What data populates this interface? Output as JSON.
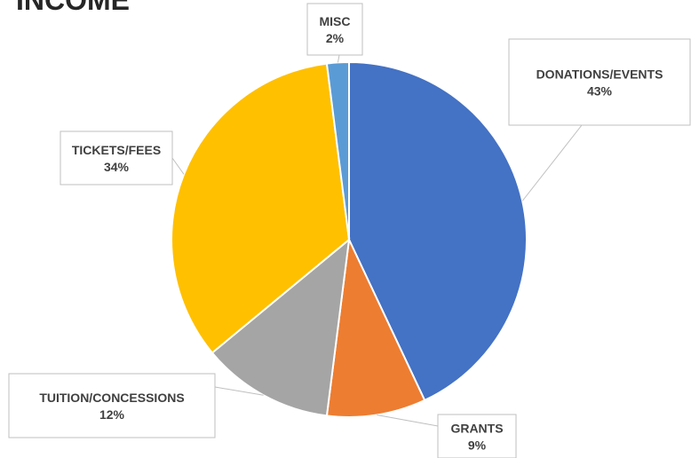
{
  "chart_data": {
    "type": "pie",
    "title": "INCOME",
    "start_angle_deg": 0,
    "direction": "clockwise",
    "show_legend": false,
    "slices": [
      {
        "label": "DONATIONS/EVENTS",
        "value": 43,
        "value_label": "43%",
        "color": "#4472C4"
      },
      {
        "label": "GRANTS",
        "value": 9,
        "value_label": "9%",
        "color": "#ED7D31"
      },
      {
        "label": "TUITION/CONCESSIONS",
        "value": 12,
        "value_label": "12%",
        "color": "#A5A5A5"
      },
      {
        "label": "TICKETS/FEES",
        "value": 34,
        "value_label": "34%",
        "color": "#FFC000"
      },
      {
        "label": "MISC",
        "value": 2,
        "value_label": "2%",
        "color": "#5B9BD5"
      }
    ]
  }
}
